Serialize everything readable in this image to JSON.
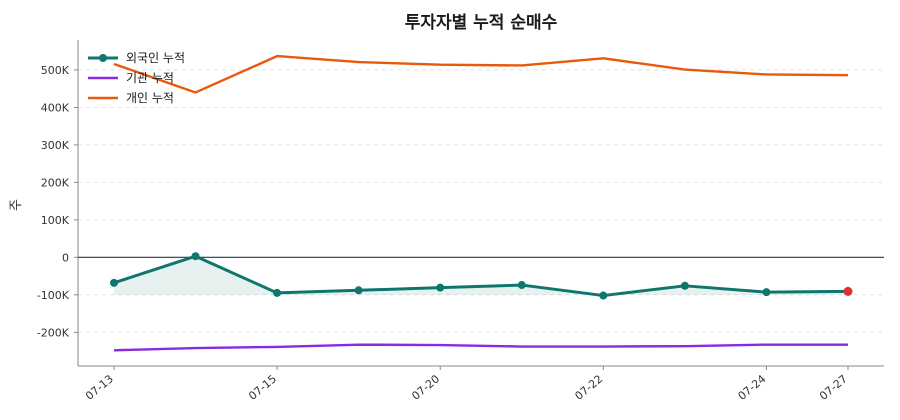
{
  "chart_data": {
    "type": "line",
    "title": "투자자별 누적 순매수",
    "xlabel": "",
    "ylabel": "주",
    "x_positions": [
      0,
      1,
      2,
      3,
      4,
      5,
      6,
      7,
      8,
      9
    ],
    "x_tick_positions": [
      0,
      2,
      4,
      6,
      8,
      9
    ],
    "x_tick_labels": [
      "07-13",
      "07-15",
      "07-20",
      "07-22",
      "07-24",
      "07-27"
    ],
    "ylim": [
      -290000,
      580000
    ],
    "y_ticks": [
      -200000,
      -100000,
      0,
      100000,
      200000,
      300000,
      400000,
      500000
    ],
    "y_tick_labels": [
      "-200K",
      "-100K",
      "0",
      "100K",
      "200K",
      "300K",
      "400K",
      "500K"
    ],
    "grid": "horizontal dashed",
    "legend_position": "top-left",
    "series": [
      {
        "name": "외국인 누적",
        "color": "#0f766e",
        "markers": true,
        "fill_to": -100000,
        "highlight_last_color": "#e03131",
        "values": [
          -68000,
          3000,
          -95000,
          -88000,
          -81000,
          -74000,
          -102000,
          -76000,
          -93000,
          -91000
        ]
      },
      {
        "name": "기관 누적",
        "color": "#8a2be2",
        "markers": false,
        "values": [
          -248000,
          -242000,
          -239000,
          -233000,
          -234000,
          -238000,
          -238000,
          -237000,
          -233000,
          -233000
        ]
      },
      {
        "name": "개인 누적",
        "color": "#e8590c",
        "markers": false,
        "values": [
          516000,
          440000,
          537000,
          521000,
          514000,
          512000,
          531000,
          501000,
          488000,
          486000
        ]
      }
    ]
  }
}
